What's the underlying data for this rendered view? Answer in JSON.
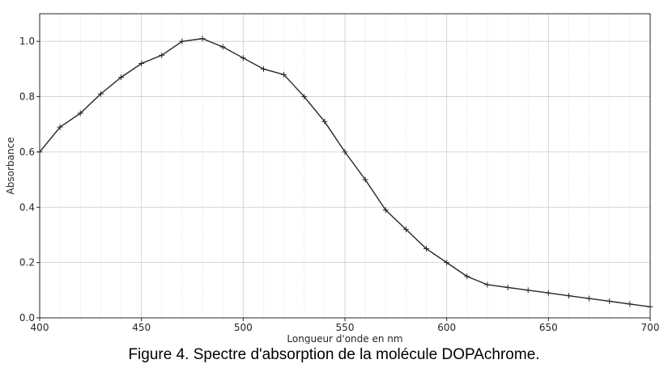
{
  "figure": {
    "caption": "Figure 4. Spectre d'absorption de la molécule DOPAchrome."
  },
  "chart_data": {
    "type": "line",
    "xlabel": "Longueur d'onde en nm",
    "ylabel": "Absorbance",
    "xlim": [
      400,
      700
    ],
    "ylim": [
      0,
      1.1
    ],
    "x_ticks": [
      400,
      450,
      500,
      550,
      600,
      650,
      700
    ],
    "x_tick_labels": [
      "400",
      "450",
      "500",
      "550",
      "600",
      "650",
      "700"
    ],
    "y_ticks": [
      0,
      0.2,
      0.4,
      0.6,
      0.8,
      1.0
    ],
    "y_tick_labels": [
      "0.0",
      "0.2",
      "0.4",
      "0.6",
      "0.8",
      "1.0"
    ],
    "x_minor_step": 10,
    "grid": true,
    "line_color": "#262626",
    "grid_color": "#cccccc",
    "marker": "plus",
    "series": [
      {
        "x": [
          400,
          410,
          420,
          430,
          440,
          450,
          460,
          470,
          480,
          490,
          500,
          510,
          520,
          530,
          540,
          550,
          560,
          570,
          580,
          590,
          600,
          610,
          620,
          630,
          640,
          650,
          660,
          670,
          680,
          690,
          700
        ],
        "y": [
          0.6,
          0.69,
          0.74,
          0.81,
          0.87,
          0.92,
          0.95,
          1.0,
          1.01,
          0.98,
          0.94,
          0.9,
          0.88,
          0.8,
          0.71,
          0.6,
          0.5,
          0.39,
          0.32,
          0.25,
          0.2,
          0.15,
          0.12,
          0.11,
          0.1,
          0.09,
          0.08,
          0.07,
          0.06,
          0.05,
          0.04
        ]
      }
    ]
  }
}
